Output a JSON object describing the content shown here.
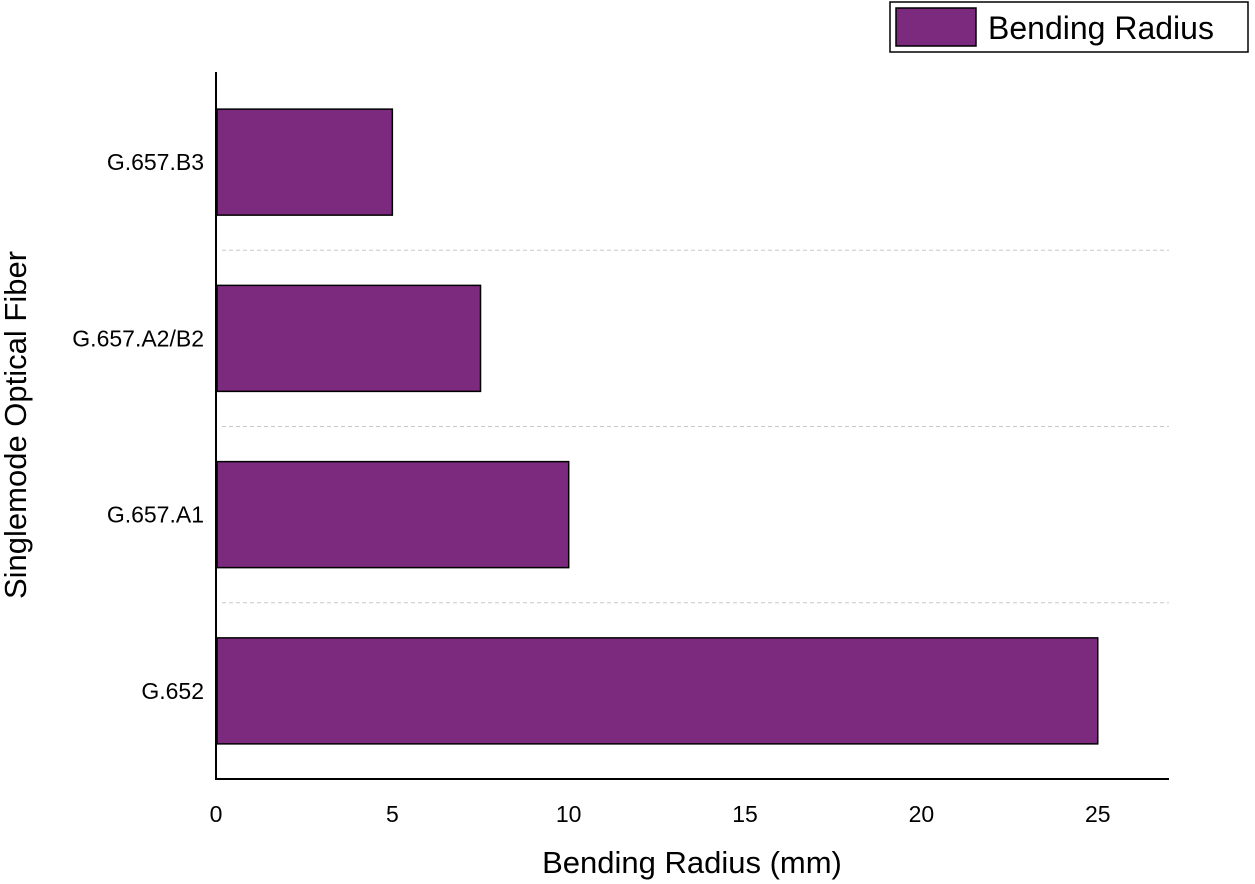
{
  "chart_data": {
    "type": "bar",
    "orientation": "horizontal",
    "categories": [
      "G.652",
      "G.657.A1",
      "G.657.A2/B2",
      "G.657.B3"
    ],
    "series": [
      {
        "name": "Bending Radius",
        "values": [
          25,
          10,
          7.5,
          5
        ],
        "color": "#7b2a7e"
      }
    ],
    "xlabel": "Bending Radius (mm)",
    "ylabel": "Singlemode Optical Fiber",
    "xlim": [
      0,
      27
    ],
    "xticks": [
      0,
      5,
      10,
      15,
      20,
      25
    ],
    "grid": "dashed horizontal separators between categories",
    "legend_position": "top-right"
  }
}
